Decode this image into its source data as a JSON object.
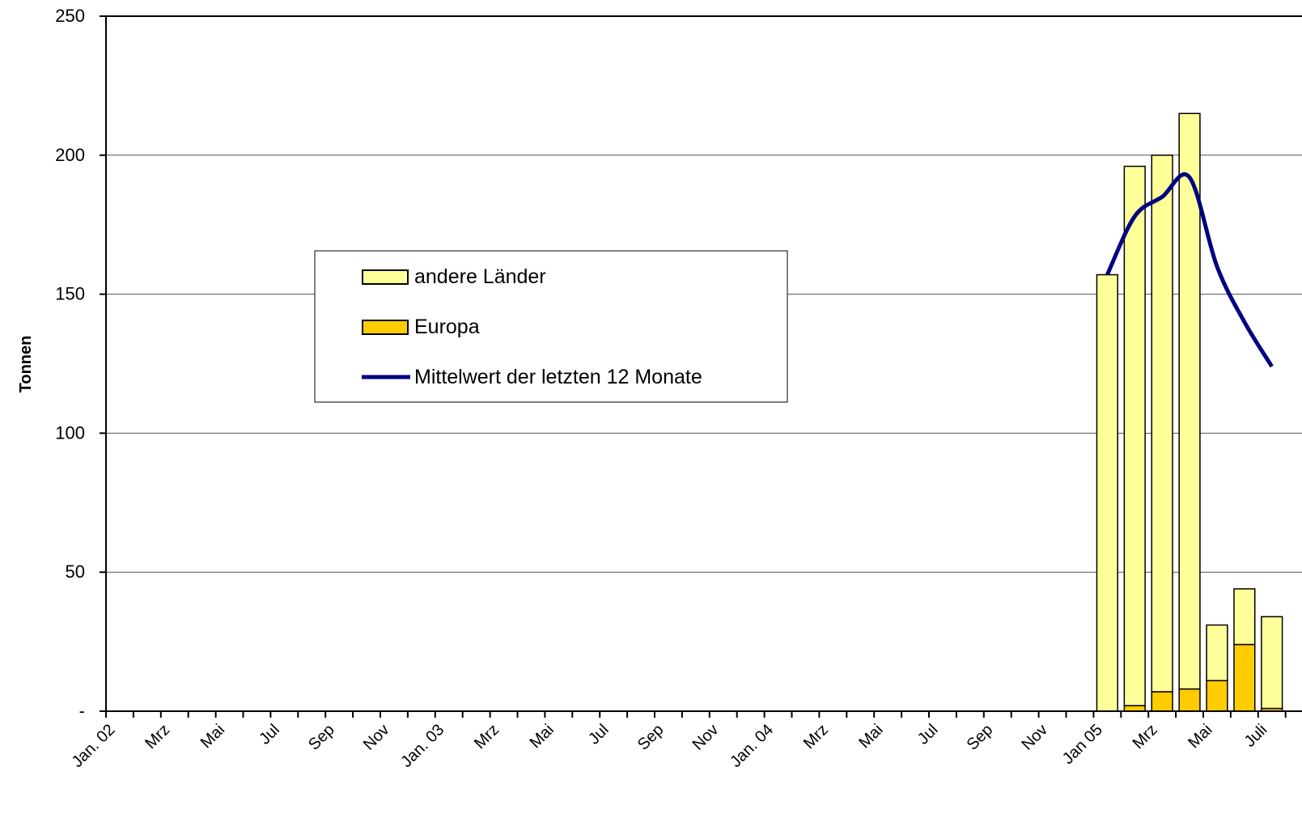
{
  "chart_data": {
    "type": "bar",
    "ylabel": "Tonnen",
    "categories": [
      "Jan. 02",
      null,
      "Mrz",
      null,
      "Mai",
      null,
      "Jul",
      null,
      "Sep",
      null,
      "Nov",
      null,
      "Jan. 03",
      null,
      "Mrz",
      null,
      "Mai",
      null,
      "Jul",
      null,
      "Sep",
      null,
      "Nov",
      null,
      "Jan. 04",
      null,
      "Mrz",
      null,
      "Mai",
      null,
      "Jul",
      null,
      "Sep",
      null,
      "Nov",
      null,
      "Jan 05",
      null,
      "Mrz",
      null,
      "Mai",
      null,
      "Juli"
    ],
    "series": [
      {
        "name": "Europa",
        "color": "#FFCC00",
        "values": [
          null,
          null,
          null,
          null,
          null,
          null,
          null,
          null,
          null,
          null,
          null,
          null,
          null,
          null,
          null,
          null,
          null,
          null,
          null,
          null,
          null,
          null,
          null,
          null,
          null,
          null,
          null,
          null,
          null,
          null,
          null,
          null,
          null,
          null,
          null,
          null,
          0,
          2,
          7,
          8,
          11,
          24,
          1
        ]
      },
      {
        "name": "andere Länder",
        "color": "#FFFF99",
        "values": [
          null,
          null,
          null,
          null,
          null,
          null,
          null,
          null,
          null,
          null,
          null,
          null,
          null,
          null,
          null,
          null,
          null,
          null,
          null,
          null,
          null,
          null,
          null,
          null,
          null,
          null,
          null,
          null,
          null,
          null,
          null,
          null,
          null,
          null,
          null,
          null,
          157,
          194,
          193,
          207,
          20,
          20,
          33
        ]
      },
      {
        "name": "Mittelwert der letzten 12 Monate",
        "type": "line",
        "color": "#000080",
        "values": [
          null,
          null,
          null,
          null,
          null,
          null,
          null,
          null,
          null,
          null,
          null,
          null,
          null,
          null,
          null,
          null,
          null,
          null,
          null,
          null,
          null,
          null,
          null,
          null,
          null,
          null,
          null,
          null,
          null,
          null,
          null,
          null,
          null,
          null,
          null,
          null,
          157,
          178,
          185,
          192,
          160,
          140,
          124
        ]
      }
    ],
    "ylim": [
      0,
      250
    ],
    "yticks": [
      {
        "value": 0,
        "label": "-"
      },
      50,
      100,
      150,
      200,
      250
    ],
    "grid": true,
    "stacked": true
  }
}
